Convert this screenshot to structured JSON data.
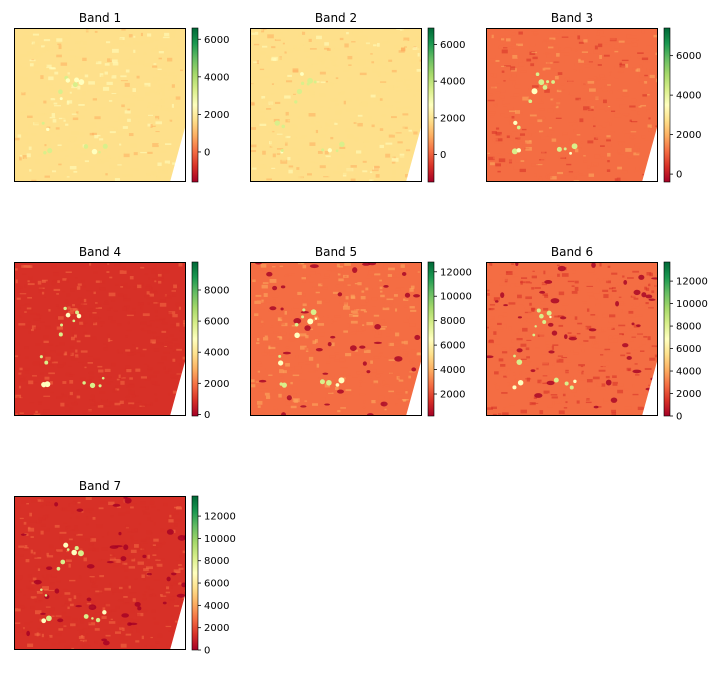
{
  "colormap": [
    "#a50026",
    "#d73027",
    "#f46d43",
    "#fdae61",
    "#fee08b",
    "#ffffbf",
    "#d9ef8b",
    "#a6d96a",
    "#66bd63",
    "#1a9850",
    "#006837"
  ],
  "chart_data": [
    {
      "type": "heatmap",
      "title": "Band 1",
      "colorbar": {
        "min": -1600,
        "max": 6600,
        "ticks": [
          0,
          2000,
          4000,
          6000
        ]
      },
      "base_value": 1700
    },
    {
      "type": "heatmap",
      "title": "Band 2",
      "colorbar": {
        "min": -1500,
        "max": 6900,
        "ticks": [
          0,
          2000,
          4000,
          6000
        ]
      },
      "base_value": 1800
    },
    {
      "type": "heatmap",
      "title": "Band 3",
      "colorbar": {
        "min": -400,
        "max": 7400,
        "ticks": [
          0,
          2000,
          4000,
          6000
        ]
      },
      "base_value": 1150
    },
    {
      "type": "heatmap",
      "title": "Band 4",
      "colorbar": {
        "min": -100,
        "max": 9800,
        "ticks": [
          0,
          2000,
          4000,
          6000,
          8000
        ]
      },
      "base_value": 1100
    },
    {
      "type": "heatmap",
      "title": "Band 5",
      "colorbar": {
        "min": 200,
        "max": 12800,
        "ticks": [
          2000,
          4000,
          6000,
          8000,
          10000,
          12000
        ]
      },
      "base_value": 3000
    },
    {
      "type": "heatmap",
      "title": "Band 6",
      "colorbar": {
        "min": 0,
        "max": 13700,
        "ticks": [
          0,
          2000,
          4000,
          6000,
          8000,
          10000,
          12000
        ]
      },
      "base_value": 2300
    },
    {
      "type": "heatmap",
      "title": "Band 7",
      "colorbar": {
        "min": 0,
        "max": 13800,
        "ticks": [
          0,
          2000,
          4000,
          6000,
          8000,
          10000,
          12000
        ]
      },
      "base_value": 1700
    }
  ]
}
